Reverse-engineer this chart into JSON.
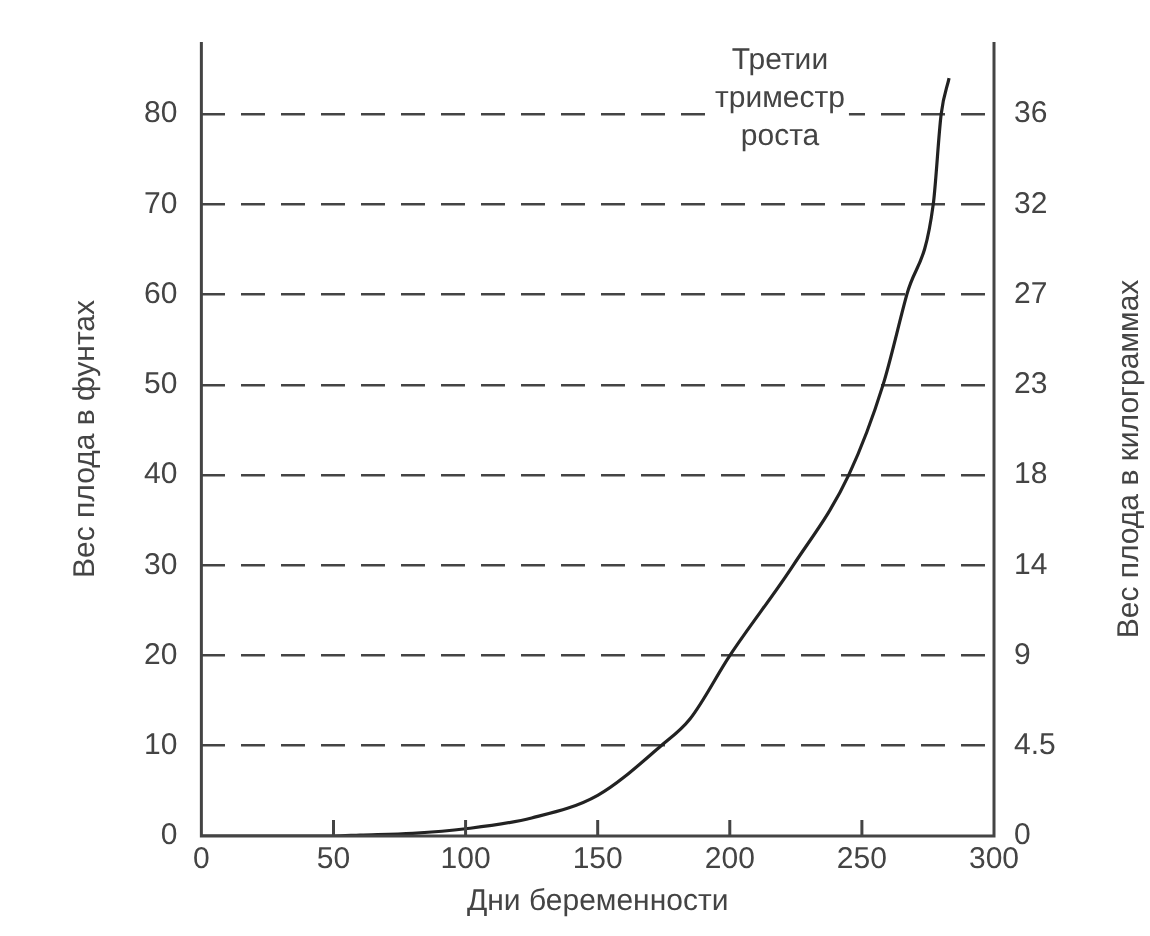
{
  "chart_data": {
    "type": "line",
    "xlabel": "Дни беременности",
    "ylabel": "Вес плода в фунтах",
    "y2label": "Вес плода в килограммах",
    "annotations": [
      "Третии\nтриместр\nроста"
    ],
    "series": [
      {
        "color": "#222222",
        "x": [
          0,
          50,
          60,
          80,
          100,
          125,
          150,
          174,
          185,
          200,
          224,
          245,
          258,
          267,
          277,
          280,
          283
        ],
        "values": [
          0,
          0,
          0.1,
          0.3,
          0.8,
          2,
          4.5,
          10,
          13,
          20,
          30,
          40,
          50,
          60,
          70,
          80,
          84
        ]
      }
    ],
    "xlim": [
      0,
      300
    ],
    "xticks": [
      0,
      50,
      100,
      150,
      200,
      250,
      300
    ],
    "ylim": [
      0,
      88
    ],
    "yticks": [
      0,
      10,
      20,
      30,
      40,
      50,
      60,
      70,
      80
    ],
    "y2lim": [
      0,
      39.92
    ],
    "y2ticks": [
      0,
      {
        "value": 4.536,
        "label": "4.5"
      },
      {
        "value": 9.072,
        "label": "9"
      },
      {
        "value": 13.61,
        "label": "14"
      },
      {
        "value": 18.14,
        "label": "18"
      },
      {
        "value": 22.68,
        "label": "23"
      },
      {
        "value": 27.22,
        "label": "27"
      },
      {
        "value": 31.75,
        "label": "32"
      },
      {
        "value": 36.29,
        "label": "36"
      }
    ],
    "grid": "y",
    "marker": "none",
    "line_style": "solid",
    "legend": false
  }
}
